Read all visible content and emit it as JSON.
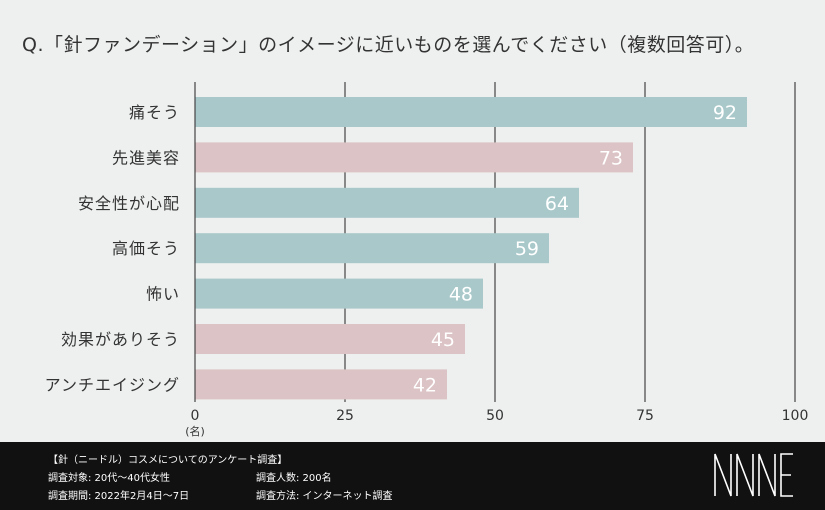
{
  "question": "Q.「針ファンデーション」のイメージに近いものを選んでください（複数回答可）。",
  "chart_data": {
    "type": "bar",
    "orientation": "horizontal",
    "categories": [
      "痛そう",
      "先進美容",
      "安全性が心配",
      "高価そう",
      "怖い",
      "効果がありそう",
      "アンチエイジング"
    ],
    "values": [
      92,
      73,
      64,
      59,
      48,
      45,
      42
    ],
    "bar_colors": [
      "#a9c8ca",
      "#dcc3c5",
      "#a9c8ca",
      "#a9c8ca",
      "#a9c8ca",
      "#dcc3c5",
      "#dcc3c5"
    ],
    "xlim": [
      0,
      100
    ],
    "xticks": [
      0,
      25,
      50,
      75,
      100
    ],
    "xunit": "(名)",
    "grid": true
  },
  "footer": {
    "title": "【針（ニードル）コスメについてのアンケート調査】",
    "target": "調査対象: 20代～40代女性",
    "period": "調査期間: 2022年2月4日～7日",
    "count": "調査人数: 200名",
    "method": "調査方法: インターネット調査",
    "logo_text": "NNNE"
  }
}
